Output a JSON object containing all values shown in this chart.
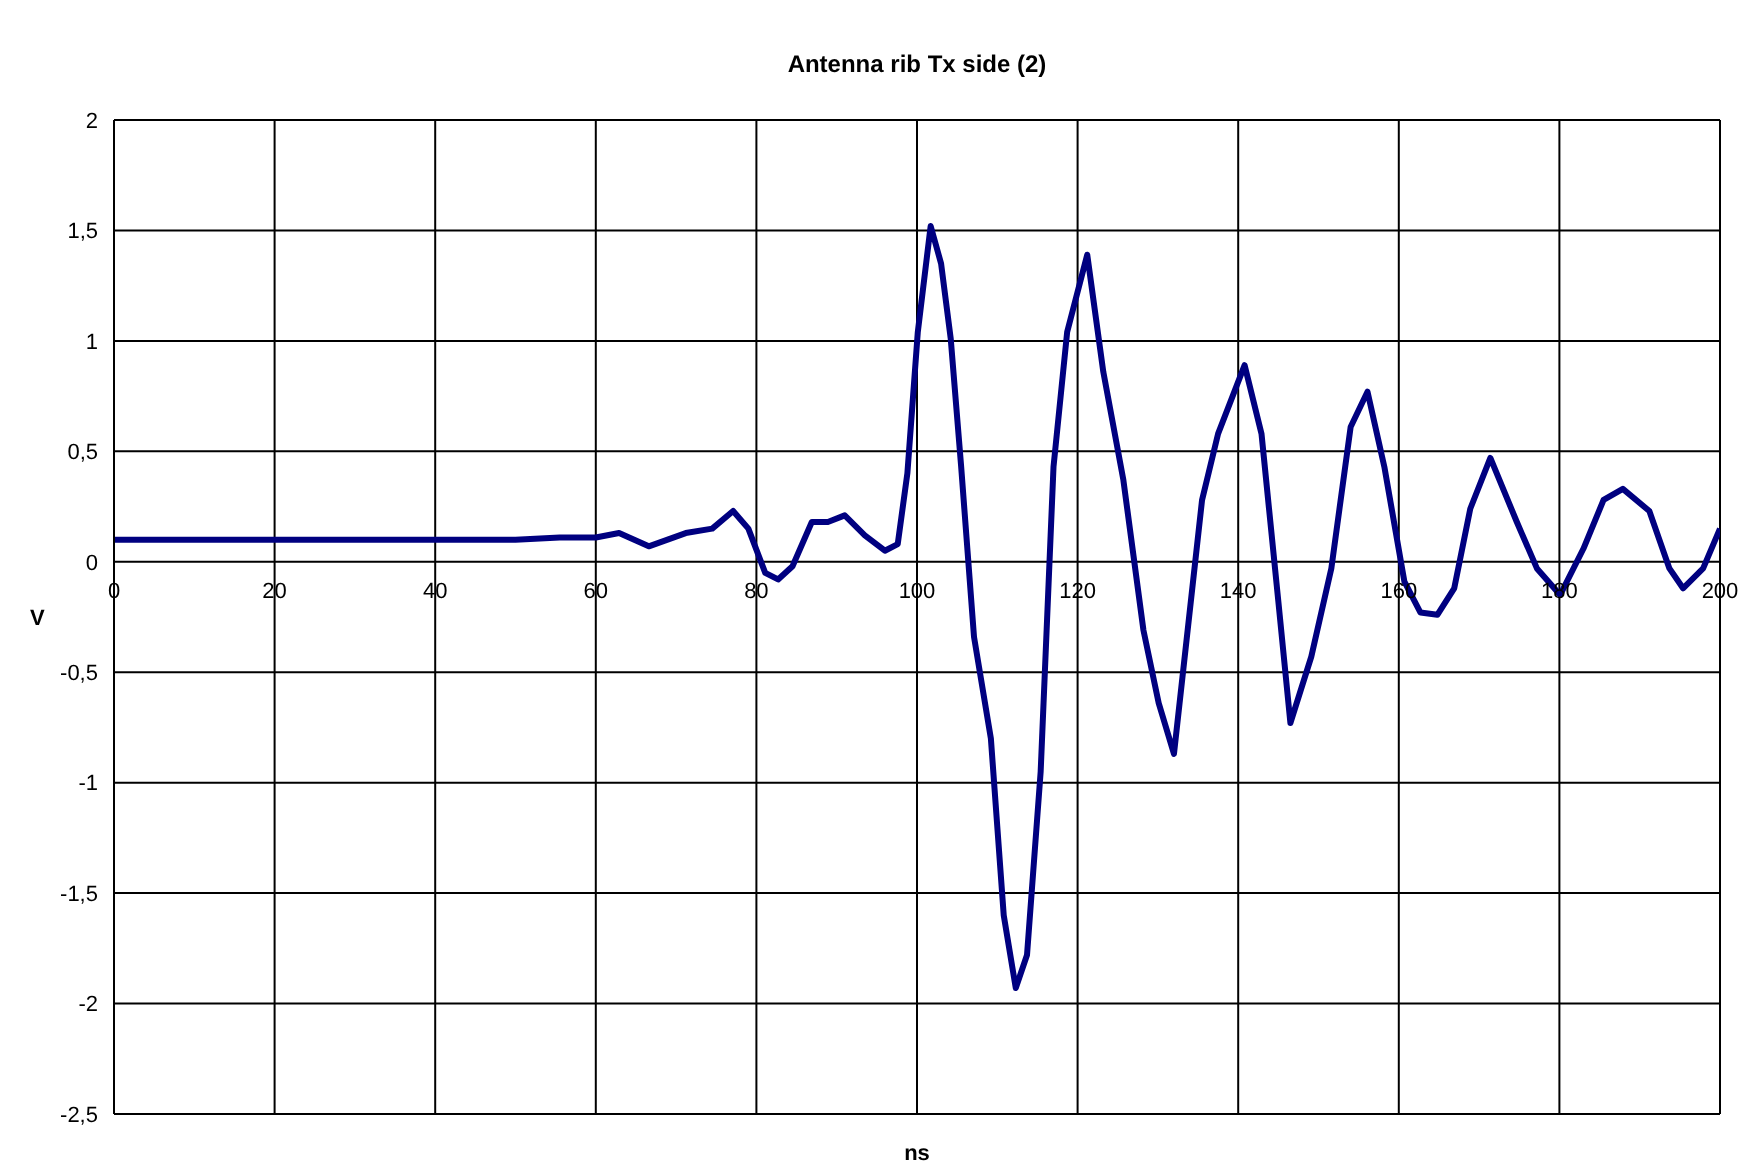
{
  "chart_data": {
    "type": "line",
    "title": "Antenna rib Tx side (2)",
    "xlabel": "ns",
    "ylabel": "V",
    "xlim": [
      0,
      200
    ],
    "xticks": [
      0,
      20,
      40,
      60,
      80,
      100,
      120,
      140,
      160,
      180,
      200
    ],
    "ylim": [
      -2.5,
      2
    ],
    "yticks": [
      {
        "value": -2.5,
        "label": "-2,5"
      },
      -2,
      {
        "value": -1.5,
        "label": "-1,5"
      },
      -1,
      {
        "value": -0.5,
        "label": "-0,5"
      },
      0,
      {
        "value": 0.5,
        "label": "0,5"
      },
      1,
      {
        "value": 1.5,
        "label": "1,5"
      },
      2
    ],
    "grid": true,
    "series": [
      {
        "color": "#000080",
        "x": [
          0,
          10,
          20,
          30,
          40,
          50,
          55.5,
          60,
          62.9,
          66.6,
          71.2,
          74.5,
          77.1,
          79,
          81.1,
          82.7,
          84.5,
          86.9,
          88.9,
          91,
          93.5,
          96,
          97.6,
          98.8,
          100.1,
          101.7,
          103,
          104.2,
          105.5,
          107.1,
          109.2,
          110.8,
          112.3,
          113.7,
          115.4,
          117,
          118.7,
          121.2,
          123.2,
          125.7,
          128.2,
          130.1,
          132,
          135.5,
          137.5,
          140.8,
          142.9,
          145,
          146.5,
          149.1,
          151.6,
          154,
          156.1,
          158.2,
          160.7,
          162.7,
          164.8,
          166.9,
          168.9,
          171.4,
          174.7,
          177.2,
          180.1,
          183,
          185.5,
          187.9,
          191.2,
          193.7,
          195.4,
          197.9,
          200
        ],
        "values": [
          0.1,
          0.1,
          0.1,
          0.1,
          0.1,
          0.1,
          0.11,
          0.11,
          0.13,
          0.07,
          0.13,
          0.15,
          0.23,
          0.15,
          -0.05,
          -0.08,
          -0.02,
          0.18,
          0.18,
          0.21,
          0.12,
          0.05,
          0.08,
          0.4,
          1.04,
          1.52,
          1.35,
          1.01,
          0.43,
          -0.34,
          -0.8,
          -1.6,
          -1.93,
          -1.78,
          -0.95,
          0.43,
          1.04,
          1.39,
          0.86,
          0.37,
          -0.31,
          -0.64,
          -0.87,
          0.28,
          0.58,
          0.89,
          0.58,
          -0.18,
          -0.73,
          -0.43,
          -0.03,
          0.61,
          0.77,
          0.43,
          -0.09,
          -0.23,
          -0.24,
          -0.12,
          0.24,
          0.47,
          0.18,
          -0.03,
          -0.15,
          0.06,
          0.28,
          0.33,
          0.23,
          -0.03,
          -0.12,
          -0.03,
          0.15
        ]
      }
    ]
  }
}
